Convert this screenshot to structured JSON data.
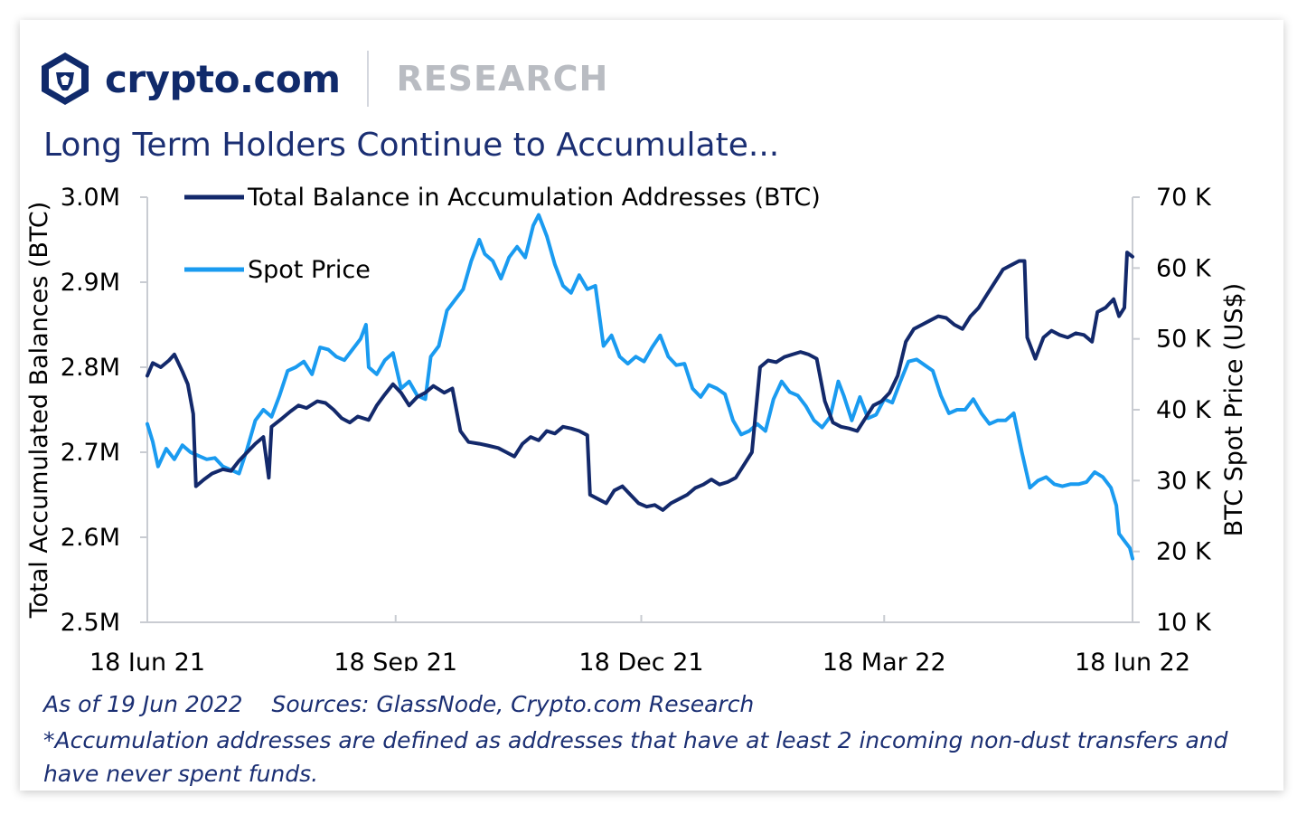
{
  "header": {
    "logo_icon": "crypto-com-lion-hexagon-icon",
    "brand": "crypto.com",
    "section": "RESEARCH"
  },
  "colors": {
    "navy": "#102a6b",
    "title": "#1b2f73",
    "balance_line": "#13296b",
    "price_line": "#1a9bf0",
    "axis": "#c9ccd2"
  },
  "footer": {
    "as_of": "As of 19 Jun 2022",
    "sources": "Sources: GlassNode, Crypto.com Research",
    "note": "*Accumulation addresses are defined as addresses that have at least 2 incoming non-dust transfers and have never spent funds."
  },
  "chart_data": {
    "type": "line",
    "title": "Long Term Holders Continue to Accumulate...",
    "xlabel": "",
    "ylabel": "Total Accumulated Balances (BTC)",
    "y2label": "BTC Spot Price (US$)",
    "xlim": [
      "2021-06-18",
      "2022-06-18"
    ],
    "ylim": [
      2500000,
      3000000
    ],
    "y2lim": [
      10000,
      70000
    ],
    "x_tick_labels": [
      "18 Jun 21",
      "18 Sep 21",
      "18 Dec 21",
      "18 Mar 22",
      "18 Jun 22"
    ],
    "x_ticks": [
      "2021-06-18",
      "2021-09-18",
      "2021-12-18",
      "2022-03-18",
      "2022-06-18"
    ],
    "y_tick_labels": [
      "3.0M",
      "2.9M",
      "2.8M",
      "2.7M",
      "2.6M",
      "2.5M"
    ],
    "y_ticks": [
      3000000,
      2900000,
      2800000,
      2700000,
      2600000,
      2500000
    ],
    "y2_tick_labels": [
      "70 K",
      "60 K",
      "50 K",
      "40 K",
      "30 K",
      "20 K",
      "10 K"
    ],
    "y2_ticks": [
      70000,
      60000,
      50000,
      40000,
      30000,
      20000,
      10000
    ],
    "grid": false,
    "legend_position": "top-left",
    "series": [
      {
        "name": "Total Balance in Accumulation Addresses (BTC)",
        "axis": "left",
        "color": "#13296b",
        "points": [
          [
            "2021-06-18",
            2790000
          ],
          [
            "2021-06-20",
            2805000
          ],
          [
            "2021-06-23",
            2800000
          ],
          [
            "2021-06-26",
            2808000
          ],
          [
            "2021-06-28",
            2815000
          ],
          [
            "2021-07-01",
            2795000
          ],
          [
            "2021-07-03",
            2780000
          ],
          [
            "2021-07-05",
            2745000
          ],
          [
            "2021-07-06",
            2660000
          ],
          [
            "2021-07-09",
            2668000
          ],
          [
            "2021-07-12",
            2675000
          ],
          [
            "2021-07-16",
            2680000
          ],
          [
            "2021-07-19",
            2678000
          ],
          [
            "2021-07-22",
            2690000
          ],
          [
            "2021-07-25",
            2700000
          ],
          [
            "2021-07-28",
            2710000
          ],
          [
            "2021-07-31",
            2718000
          ],
          [
            "2021-08-02",
            2670000
          ],
          [
            "2021-08-03",
            2730000
          ],
          [
            "2021-08-07",
            2740000
          ],
          [
            "2021-08-10",
            2748000
          ],
          [
            "2021-08-13",
            2755000
          ],
          [
            "2021-08-16",
            2752000
          ],
          [
            "2021-08-20",
            2760000
          ],
          [
            "2021-08-23",
            2758000
          ],
          [
            "2021-08-26",
            2750000
          ],
          [
            "2021-08-29",
            2740000
          ],
          [
            "2021-09-01",
            2735000
          ],
          [
            "2021-09-04",
            2742000
          ],
          [
            "2021-09-08",
            2738000
          ],
          [
            "2021-09-11",
            2755000
          ],
          [
            "2021-09-14",
            2768000
          ],
          [
            "2021-09-17",
            2780000
          ],
          [
            "2021-09-20",
            2770000
          ],
          [
            "2021-09-23",
            2755000
          ],
          [
            "2021-09-26",
            2765000
          ],
          [
            "2021-09-29",
            2770000
          ],
          [
            "2021-10-02",
            2778000
          ],
          [
            "2021-10-06",
            2770000
          ],
          [
            "2021-10-09",
            2775000
          ],
          [
            "2021-10-12",
            2725000
          ],
          [
            "2021-10-15",
            2712000
          ],
          [
            "2021-10-19",
            2710000
          ],
          [
            "2021-10-22",
            2708000
          ],
          [
            "2021-10-26",
            2705000
          ],
          [
            "2021-10-29",
            2700000
          ],
          [
            "2021-11-01",
            2695000
          ],
          [
            "2021-11-04",
            2710000
          ],
          [
            "2021-11-07",
            2718000
          ],
          [
            "2021-11-10",
            2714000
          ],
          [
            "2021-11-13",
            2725000
          ],
          [
            "2021-11-16",
            2722000
          ],
          [
            "2021-11-19",
            2730000
          ],
          [
            "2021-11-22",
            2728000
          ],
          [
            "2021-11-25",
            2725000
          ],
          [
            "2021-11-28",
            2720000
          ],
          [
            "2021-11-29",
            2650000
          ],
          [
            "2021-12-02",
            2645000
          ],
          [
            "2021-12-05",
            2640000
          ],
          [
            "2021-12-08",
            2655000
          ],
          [
            "2021-12-11",
            2660000
          ],
          [
            "2021-12-14",
            2650000
          ],
          [
            "2021-12-17",
            2640000
          ],
          [
            "2021-12-20",
            2636000
          ],
          [
            "2021-12-23",
            2638000
          ],
          [
            "2021-12-26",
            2632000
          ],
          [
            "2021-12-29",
            2640000
          ],
          [
            "2022-01-01",
            2645000
          ],
          [
            "2022-01-04",
            2650000
          ],
          [
            "2022-01-07",
            2658000
          ],
          [
            "2022-01-10",
            2662000
          ],
          [
            "2022-01-13",
            2668000
          ],
          [
            "2022-01-16",
            2662000
          ],
          [
            "2022-01-19",
            2665000
          ],
          [
            "2022-01-22",
            2670000
          ],
          [
            "2022-01-25",
            2685000
          ],
          [
            "2022-01-28",
            2700000
          ],
          [
            "2022-01-31",
            2800000
          ],
          [
            "2022-02-03",
            2808000
          ],
          [
            "2022-02-06",
            2806000
          ],
          [
            "2022-02-09",
            2812000
          ],
          [
            "2022-02-12",
            2815000
          ],
          [
            "2022-02-15",
            2818000
          ],
          [
            "2022-02-18",
            2815000
          ],
          [
            "2022-02-21",
            2810000
          ],
          [
            "2022-02-24",
            2760000
          ],
          [
            "2022-02-27",
            2735000
          ],
          [
            "2022-03-02",
            2730000
          ],
          [
            "2022-03-05",
            2728000
          ],
          [
            "2022-03-08",
            2725000
          ],
          [
            "2022-03-11",
            2740000
          ],
          [
            "2022-03-14",
            2755000
          ],
          [
            "2022-03-17",
            2760000
          ],
          [
            "2022-03-20",
            2770000
          ],
          [
            "2022-03-23",
            2790000
          ],
          [
            "2022-03-26",
            2830000
          ],
          [
            "2022-03-29",
            2845000
          ],
          [
            "2022-04-01",
            2850000
          ],
          [
            "2022-04-04",
            2855000
          ],
          [
            "2022-04-07",
            2860000
          ],
          [
            "2022-04-10",
            2858000
          ],
          [
            "2022-04-13",
            2850000
          ],
          [
            "2022-04-16",
            2845000
          ],
          [
            "2022-04-19",
            2860000
          ],
          [
            "2022-04-22",
            2870000
          ],
          [
            "2022-04-25",
            2885000
          ],
          [
            "2022-04-28",
            2900000
          ],
          [
            "2022-05-01",
            2915000
          ],
          [
            "2022-05-04",
            2920000
          ],
          [
            "2022-05-07",
            2925000
          ],
          [
            "2022-05-09",
            2925000
          ],
          [
            "2022-05-10",
            2835000
          ],
          [
            "2022-05-13",
            2810000
          ],
          [
            "2022-05-16",
            2835000
          ],
          [
            "2022-05-19",
            2843000
          ],
          [
            "2022-05-22",
            2838000
          ],
          [
            "2022-05-25",
            2835000
          ],
          [
            "2022-05-28",
            2840000
          ],
          [
            "2022-05-31",
            2838000
          ],
          [
            "2022-06-03",
            2830000
          ],
          [
            "2022-06-05",
            2865000
          ],
          [
            "2022-06-08",
            2870000
          ],
          [
            "2022-06-11",
            2880000
          ],
          [
            "2022-06-13",
            2860000
          ],
          [
            "2022-06-15",
            2870000
          ],
          [
            "2022-06-16",
            2935000
          ],
          [
            "2022-06-18",
            2930000
          ]
        ]
      },
      {
        "name": "Spot Price",
        "axis": "right",
        "color": "#1a9bf0",
        "points": [
          [
            "2021-06-18",
            38000
          ],
          [
            "2021-06-20",
            35500
          ],
          [
            "2021-06-22",
            32000
          ],
          [
            "2021-06-25",
            34500
          ],
          [
            "2021-06-28",
            33000
          ],
          [
            "2021-07-01",
            35000
          ],
          [
            "2021-07-04",
            34000
          ],
          [
            "2021-07-07",
            33500
          ],
          [
            "2021-07-10",
            33000
          ],
          [
            "2021-07-13",
            33200
          ],
          [
            "2021-07-16",
            32000
          ],
          [
            "2021-07-19",
            31500
          ],
          [
            "2021-07-22",
            31000
          ],
          [
            "2021-07-25",
            34500
          ],
          [
            "2021-07-28",
            38500
          ],
          [
            "2021-07-31",
            40000
          ],
          [
            "2021-08-03",
            39000
          ],
          [
            "2021-08-06",
            42000
          ],
          [
            "2021-08-09",
            45500
          ],
          [
            "2021-08-12",
            46000
          ],
          [
            "2021-08-15",
            46800
          ],
          [
            "2021-08-18",
            45000
          ],
          [
            "2021-08-21",
            48800
          ],
          [
            "2021-08-24",
            48500
          ],
          [
            "2021-08-27",
            47500
          ],
          [
            "2021-08-30",
            47000
          ],
          [
            "2021-09-02",
            48500
          ],
          [
            "2021-09-05",
            50000
          ],
          [
            "2021-09-07",
            52000
          ],
          [
            "2021-09-08",
            46000
          ],
          [
            "2021-09-11",
            45000
          ],
          [
            "2021-09-14",
            47000
          ],
          [
            "2021-09-17",
            48000
          ],
          [
            "2021-09-20",
            43000
          ],
          [
            "2021-09-23",
            44000
          ],
          [
            "2021-09-26",
            42000
          ],
          [
            "2021-09-29",
            41500
          ],
          [
            "2021-10-01",
            47500
          ],
          [
            "2021-10-04",
            49000
          ],
          [
            "2021-10-07",
            54000
          ],
          [
            "2021-10-10",
            55500
          ],
          [
            "2021-10-13",
            57000
          ],
          [
            "2021-10-16",
            61000
          ],
          [
            "2021-10-19",
            64000
          ],
          [
            "2021-10-21",
            62000
          ],
          [
            "2021-10-24",
            61000
          ],
          [
            "2021-10-27",
            58500
          ],
          [
            "2021-10-30",
            61500
          ],
          [
            "2021-11-02",
            63000
          ],
          [
            "2021-11-05",
            61500
          ],
          [
            "2021-11-08",
            66000
          ],
          [
            "2021-11-10",
            67500
          ],
          [
            "2021-11-13",
            64500
          ],
          [
            "2021-11-16",
            60500
          ],
          [
            "2021-11-19",
            57500
          ],
          [
            "2021-11-22",
            56500
          ],
          [
            "2021-11-25",
            59000
          ],
          [
            "2021-11-28",
            57000
          ],
          [
            "2021-12-01",
            57500
          ],
          [
            "2021-12-04",
            49000
          ],
          [
            "2021-12-07",
            50500
          ],
          [
            "2021-12-10",
            47500
          ],
          [
            "2021-12-13",
            46500
          ],
          [
            "2021-12-16",
            47500
          ],
          [
            "2021-12-19",
            46800
          ],
          [
            "2021-12-22",
            48800
          ],
          [
            "2021-12-25",
            50500
          ],
          [
            "2021-12-28",
            47500
          ],
          [
            "2021-12-31",
            46300
          ],
          [
            "2022-01-03",
            46500
          ],
          [
            "2022-01-06",
            43000
          ],
          [
            "2022-01-09",
            41800
          ],
          [
            "2022-01-12",
            43500
          ],
          [
            "2022-01-15",
            43000
          ],
          [
            "2022-01-18",
            42200
          ],
          [
            "2022-01-21",
            38500
          ],
          [
            "2022-01-24",
            36500
          ],
          [
            "2022-01-27",
            37000
          ],
          [
            "2022-01-30",
            38000
          ],
          [
            "2022-02-02",
            37000
          ],
          [
            "2022-02-05",
            41500
          ],
          [
            "2022-02-08",
            44000
          ],
          [
            "2022-02-11",
            42500
          ],
          [
            "2022-02-14",
            42000
          ],
          [
            "2022-02-17",
            40500
          ],
          [
            "2022-02-20",
            38500
          ],
          [
            "2022-02-23",
            37500
          ],
          [
            "2022-02-26",
            39000
          ],
          [
            "2022-03-01",
            44000
          ],
          [
            "2022-03-03",
            42000
          ],
          [
            "2022-03-06",
            38500
          ],
          [
            "2022-03-09",
            41800
          ],
          [
            "2022-03-12",
            38800
          ],
          [
            "2022-03-15",
            39300
          ],
          [
            "2022-03-18",
            41500
          ],
          [
            "2022-03-21",
            41000
          ],
          [
            "2022-03-24",
            44000
          ],
          [
            "2022-03-27",
            46800
          ],
          [
            "2022-03-30",
            47100
          ],
          [
            "2022-04-02",
            46300
          ],
          [
            "2022-04-05",
            45500
          ],
          [
            "2022-04-08",
            42000
          ],
          [
            "2022-04-11",
            39500
          ],
          [
            "2022-04-14",
            40000
          ],
          [
            "2022-04-17",
            40000
          ],
          [
            "2022-04-20",
            41500
          ],
          [
            "2022-04-23",
            39500
          ],
          [
            "2022-04-26",
            38000
          ],
          [
            "2022-04-29",
            38500
          ],
          [
            "2022-05-02",
            38500
          ],
          [
            "2022-05-05",
            39500
          ],
          [
            "2022-05-08",
            34000
          ],
          [
            "2022-05-11",
            29000
          ],
          [
            "2022-05-14",
            30000
          ],
          [
            "2022-05-17",
            30500
          ],
          [
            "2022-05-20",
            29500
          ],
          [
            "2022-05-23",
            29200
          ],
          [
            "2022-05-26",
            29500
          ],
          [
            "2022-05-29",
            29500
          ],
          [
            "2022-06-01",
            29800
          ],
          [
            "2022-06-04",
            31200
          ],
          [
            "2022-06-07",
            30500
          ],
          [
            "2022-06-10",
            29000
          ],
          [
            "2022-06-12",
            26500
          ],
          [
            "2022-06-13",
            22500
          ],
          [
            "2022-06-15",
            21500
          ],
          [
            "2022-06-17",
            20500
          ],
          [
            "2022-06-18",
            19000
          ]
        ]
      }
    ]
  }
}
